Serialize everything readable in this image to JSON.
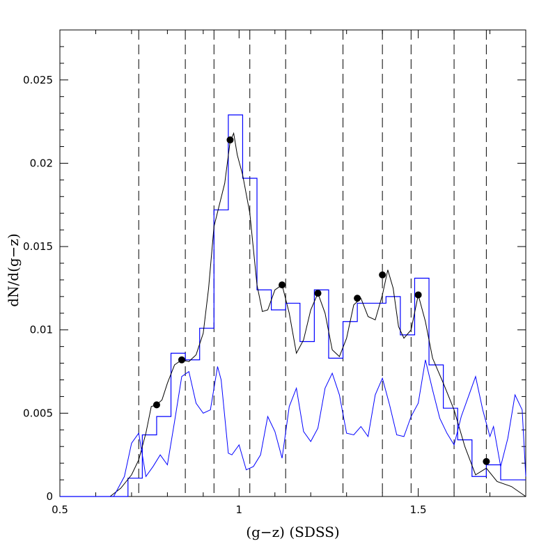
{
  "chart_data": {
    "type": "line",
    "title": "",
    "xlabel": "(g−z)  (SDSS)",
    "ylabel": "dN/d(g−z)",
    "xlim": [
      0.5,
      1.8
    ],
    "ylim": [
      0,
      0.028
    ],
    "grid": false,
    "legend": "none",
    "x_ticks": [
      {
        "value": 0.5,
        "label": "0.5"
      },
      {
        "value": 1.0,
        "label": "1"
      },
      {
        "value": 1.5,
        "label": "1.5"
      }
    ],
    "y_ticks": [
      {
        "value": 0,
        "label": "0"
      },
      {
        "value": 0.005,
        "label": "0.005"
      },
      {
        "value": 0.01,
        "label": "0.01"
      },
      {
        "value": 0.015,
        "label": "0.015"
      },
      {
        "value": 0.02,
        "label": "0.02"
      },
      {
        "value": 0.025,
        "label": "0.025"
      }
    ],
    "x_minor_step": 0.1,
    "y_minor_step": 0.001,
    "vertical_dashed_lines": [
      0.72,
      0.85,
      0.93,
      1.03,
      1.13,
      1.29,
      1.4,
      1.48,
      1.6,
      1.69
    ],
    "series": [
      {
        "kind": "step",
        "color": "#0000ff",
        "edges": [
          0.5,
          0.65,
          0.69,
          0.73,
          0.77,
          0.81,
          0.85,
          0.89,
          0.93,
          0.97,
          1.01,
          1.05,
          1.09,
          1.13,
          1.17,
          1.21,
          1.25,
          1.29,
          1.33,
          1.37,
          1.41,
          1.45,
          1.49,
          1.53,
          1.57,
          1.61,
          1.65,
          1.69,
          1.73,
          1.8
        ],
        "values": [
          0,
          0,
          0.0011,
          0.0037,
          0.0048,
          0.0086,
          0.0082,
          0.0101,
          0.0172,
          0.0229,
          0.0191,
          0.0124,
          0.0112,
          0.0116,
          0.0093,
          0.0124,
          0.0083,
          0.0105,
          0.0116,
          0.0116,
          0.012,
          0.0097,
          0.0131,
          0.0079,
          0.0053,
          0.0034,
          0.0012,
          0.0019,
          0.001
        ]
      },
      {
        "kind": "line",
        "color": "#000000",
        "x": [
          0.5,
          0.64,
          0.67,
          0.7,
          0.72,
          0.74,
          0.755,
          0.77,
          0.785,
          0.8,
          0.82,
          0.84,
          0.86,
          0.88,
          0.9,
          0.915,
          0.93,
          0.945,
          0.96,
          0.975,
          0.985,
          0.995,
          1.01,
          1.03,
          1.05,
          1.065,
          1.08,
          1.1,
          1.12,
          1.14,
          1.16,
          1.18,
          1.2,
          1.22,
          1.24,
          1.26,
          1.28,
          1.3,
          1.32,
          1.34,
          1.36,
          1.38,
          1.4,
          1.415,
          1.43,
          1.445,
          1.46,
          1.48,
          1.5,
          1.52,
          1.54,
          1.57,
          1.6,
          1.63,
          1.66,
          1.69,
          1.72,
          1.76,
          1.8
        ],
        "y": [
          0,
          0,
          0.0005,
          0.0013,
          0.0022,
          0.0038,
          0.0054,
          0.0055,
          0.0058,
          0.0068,
          0.0079,
          0.0082,
          0.0081,
          0.0085,
          0.0098,
          0.0125,
          0.0162,
          0.0175,
          0.0188,
          0.0213,
          0.0218,
          0.0205,
          0.0193,
          0.017,
          0.0127,
          0.0111,
          0.0112,
          0.0124,
          0.0127,
          0.011,
          0.0086,
          0.0094,
          0.0112,
          0.0122,
          0.011,
          0.0088,
          0.0084,
          0.0095,
          0.0115,
          0.0119,
          0.0108,
          0.0106,
          0.0121,
          0.0136,
          0.0125,
          0.0102,
          0.0095,
          0.01,
          0.0121,
          0.0105,
          0.0083,
          0.0068,
          0.0052,
          0.003,
          0.0013,
          0.0017,
          0.0009,
          0.0006,
          0
        ]
      },
      {
        "kind": "line",
        "color": "#0000ff",
        "x": [
          0.5,
          0.65,
          0.68,
          0.7,
          0.72,
          0.74,
          0.76,
          0.78,
          0.8,
          0.82,
          0.84,
          0.86,
          0.88,
          0.9,
          0.92,
          0.94,
          0.95,
          0.97,
          0.98,
          1.0,
          1.02,
          1.04,
          1.06,
          1.08,
          1.1,
          1.12,
          1.14,
          1.16,
          1.18,
          1.2,
          1.22,
          1.24,
          1.26,
          1.28,
          1.3,
          1.32,
          1.34,
          1.36,
          1.38,
          1.4,
          1.42,
          1.44,
          1.46,
          1.48,
          1.5,
          1.52,
          1.54,
          1.56,
          1.58,
          1.6,
          1.62,
          1.64,
          1.66,
          1.68,
          1.7,
          1.71,
          1.73,
          1.75,
          1.77,
          1.79,
          1.8
        ],
        "y": [
          0,
          0,
          0.0012,
          0.0032,
          0.0038,
          0.0012,
          0.0018,
          0.0025,
          0.0019,
          0.0045,
          0.0072,
          0.0075,
          0.0056,
          0.005,
          0.0052,
          0.0078,
          0.007,
          0.0026,
          0.0025,
          0.0031,
          0.0016,
          0.0018,
          0.0025,
          0.0048,
          0.0039,
          0.0023,
          0.0054,
          0.0065,
          0.0039,
          0.0033,
          0.0041,
          0.0065,
          0.0074,
          0.0061,
          0.0038,
          0.0037,
          0.0042,
          0.0036,
          0.0061,
          0.0071,
          0.0055,
          0.0037,
          0.0036,
          0.0048,
          0.0056,
          0.0082,
          0.0064,
          0.0047,
          0.0038,
          0.0031,
          0.0048,
          0.006,
          0.0072,
          0.0052,
          0.0036,
          0.0042,
          0.0018,
          0.0035,
          0.0061,
          0.0052,
          0.0012
        ]
      },
      {
        "kind": "scatter",
        "color": "#000000",
        "x": [
          0.77,
          0.84,
          0.975,
          1.12,
          1.22,
          1.33,
          1.4,
          1.5,
          1.69
        ],
        "y": [
          0.0055,
          0.0082,
          0.0214,
          0.0127,
          0.0122,
          0.0119,
          0.0133,
          0.0121,
          0.0021
        ]
      }
    ]
  }
}
